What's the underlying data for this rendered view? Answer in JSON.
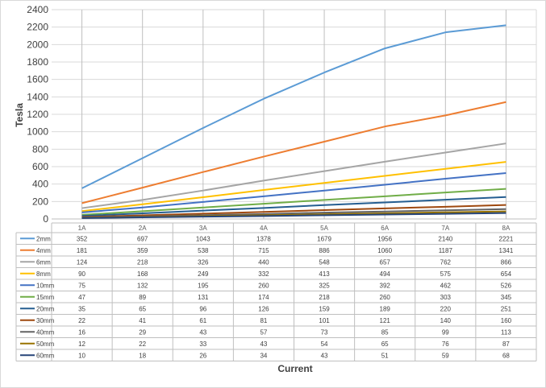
{
  "chart_data": {
    "type": "line",
    "xlabel": "Current",
    "ylabel": "Tesla",
    "ylim": [
      0,
      2400
    ],
    "ytick_step": 200,
    "grid": true,
    "legend": "data-table",
    "categories": [
      "1A",
      "2A",
      "3A",
      "4A",
      "5A",
      "6A",
      "7A",
      "8A"
    ],
    "series": [
      {
        "name": "2mm",
        "color": "#5b9bd5",
        "values": [
          352,
          697,
          1043,
          1378,
          1679,
          1956,
          2140,
          2221
        ]
      },
      {
        "name": "4mm",
        "color": "#ed7d31",
        "values": [
          181,
          359,
          538,
          715,
          886,
          1060,
          1187,
          1341
        ]
      },
      {
        "name": "6mm",
        "color": "#a5a5a5",
        "values": [
          124,
          218,
          326,
          440,
          548,
          657,
          762,
          866
        ]
      },
      {
        "name": "8mm",
        "color": "#ffc000",
        "values": [
          90,
          168,
          249,
          332,
          413,
          494,
          575,
          654
        ]
      },
      {
        "name": "10mm",
        "color": "#4472c4",
        "values": [
          75,
          132,
          195,
          260,
          325,
          392,
          462,
          526
        ]
      },
      {
        "name": "15mm",
        "color": "#70ad47",
        "values": [
          47,
          89,
          131,
          174,
          218,
          260,
          303,
          345
        ]
      },
      {
        "name": "20mm",
        "color": "#255e91",
        "values": [
          35,
          65,
          96,
          126,
          159,
          189,
          220,
          251
        ]
      },
      {
        "name": "30mm",
        "color": "#9e480e",
        "values": [
          22,
          41,
          61,
          81,
          101,
          121,
          140,
          160
        ]
      },
      {
        "name": "40mm",
        "color": "#636363",
        "values": [
          16,
          29,
          43,
          57,
          73,
          85,
          99,
          113
        ]
      },
      {
        "name": "50mm",
        "color": "#997300",
        "values": [
          12,
          22,
          33,
          43,
          54,
          65,
          76,
          87
        ]
      },
      {
        "name": "60mm",
        "color": "#264478",
        "values": [
          10,
          18,
          26,
          34,
          43,
          51,
          59,
          68
        ]
      }
    ]
  }
}
